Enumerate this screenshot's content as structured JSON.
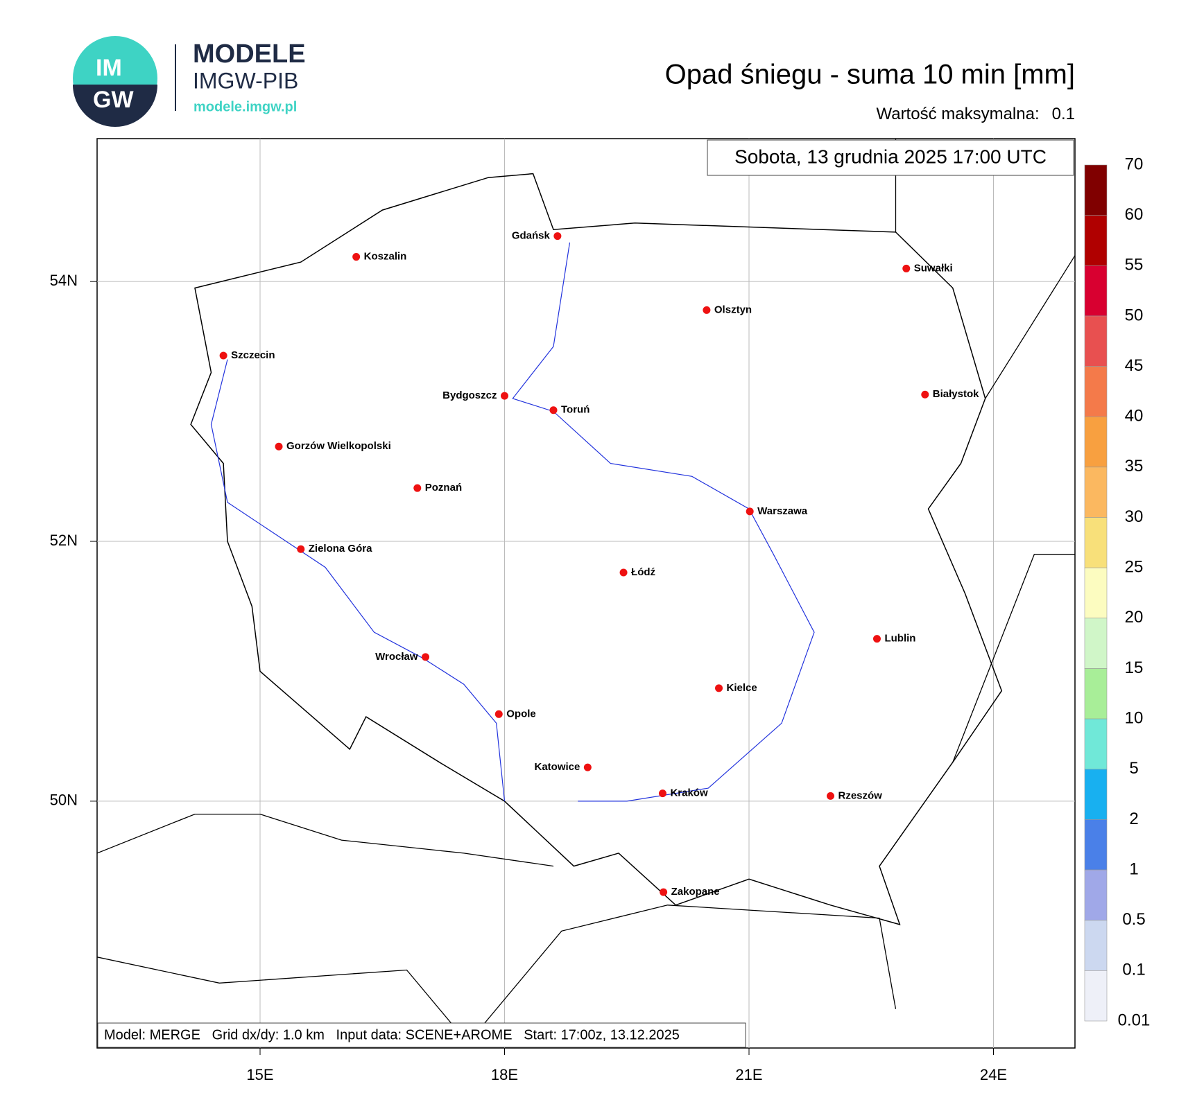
{
  "logo": {
    "badge_top": "IM",
    "badge_bottom": "GW",
    "name": "MODELE",
    "org": "IMGW-PIB",
    "url": "modele.imgw.pl"
  },
  "map": {
    "title": "Opad śniegu - suma 10 min [mm]",
    "max_label": "Wartość maksymalna:",
    "max_value": 0.1,
    "date": "Sobota, 13 grudnia 2025 17:00 UTC",
    "footer": "Model: MERGE   Grid dx/dy: 1.0 km   Input data: SCENE+AROME   Start: 17:00z, 13.12.2025",
    "xlim": [
      13,
      25
    ],
    "ylim": [
      48.1,
      55.1
    ],
    "xticks": [
      {
        "value": 15,
        "label": "15E"
      },
      {
        "value": 18,
        "label": "18E"
      },
      {
        "value": 21,
        "label": "21E"
      },
      {
        "value": 24,
        "label": "24E"
      }
    ],
    "yticks": [
      {
        "value": 54,
        "label": "54N"
      },
      {
        "value": 52,
        "label": "52N"
      },
      {
        "value": 50,
        "label": "50N"
      }
    ],
    "grid": true,
    "cities": [
      "Gdańsk",
      "Koszalin",
      "Suwałki",
      "Olsztyn",
      "Szczecin",
      "Białystok",
      "Bydgoszcz",
      "Toruń",
      "Gorzów Wielkopolski",
      "Poznań",
      "Warszawa",
      "Zielona Góra",
      "Łódź",
      "Lublin",
      "Wrocław",
      "Kielce",
      "Opole",
      "Katowice",
      "Kraków",
      "Rzeszów",
      "Zakopane"
    ],
    "colorbar": {
      "levels": [
        70,
        60,
        55,
        50,
        45,
        40,
        35,
        30,
        25,
        20,
        15,
        10,
        5,
        2,
        1,
        0.5,
        0.1,
        0.01
      ],
      "colors": [
        "#800000",
        "#b00000",
        "#d80030",
        "#e85050",
        "#f47a4a",
        "#f8a040",
        "#fbb860",
        "#f8e07a",
        "#fcfcc0",
        "#d0f6c8",
        "#a8ee98",
        "#70e8d8",
        "#18b0f0",
        "#4a80e8",
        "#a0a8e8",
        "#ccd8f0",
        "#eef0f8"
      ]
    }
  }
}
